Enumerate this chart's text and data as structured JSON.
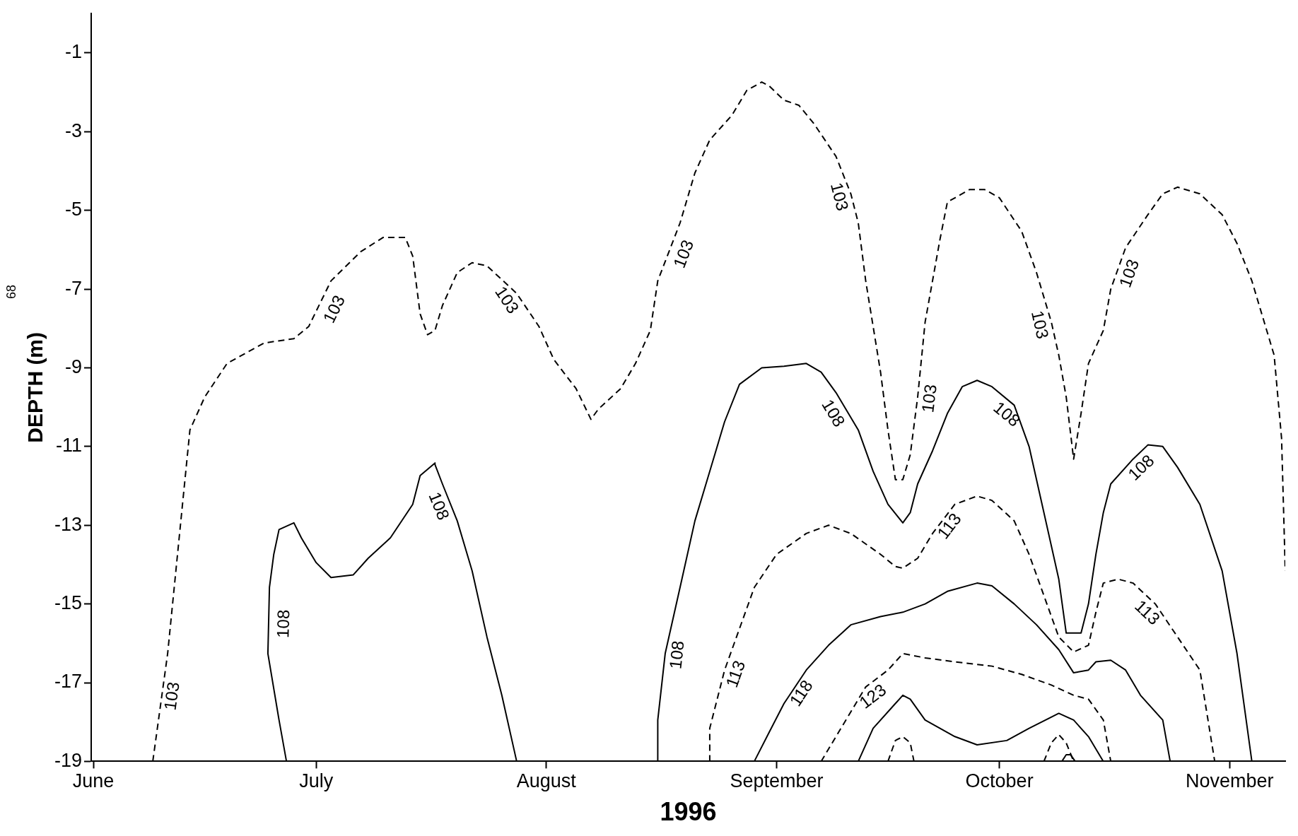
{
  "chart_data": {
    "type": "line",
    "xlabel": "1996",
    "ylabel": "DEPTH (m)",
    "xlim": [
      "1996-05-31T17:00",
      "1996-11-08T12:00"
    ],
    "xticks": [
      {
        "value": "1996-06-01",
        "label": "June"
      },
      {
        "value": "1996-07-01",
        "label": "July"
      },
      {
        "value": "1996-08-01",
        "label": "August"
      },
      {
        "value": "1996-09-01",
        "label": "September"
      },
      {
        "value": "1996-10-01",
        "label": "October"
      },
      {
        "value": "1996-11-01",
        "label": "November"
      }
    ],
    "ylim": [
      -19,
      0
    ],
    "yticks": [
      -1,
      -3,
      -5,
      -7,
      -9,
      -11,
      -13,
      -15,
      -17,
      -19
    ],
    "series": [
      {
        "color": "#000000",
        "line_style": "dashed",
        "x": [
          "1996-06-09",
          "1996-06-10",
          "1996-06-11",
          "1996-06-13",
          "1996-06-14",
          "1996-06-16",
          "1996-06-19",
          "1996-06-24",
          "1996-06-28",
          "1996-06-30",
          "1996-07-03",
          "1996-07-07",
          "1996-07-10",
          "1996-07-13",
          "1996-07-14",
          "1996-07-15",
          "1996-07-16",
          "1996-07-17",
          "1996-07-18",
          "1996-07-20",
          "1996-07-22",
          "1996-07-24",
          "1996-07-28",
          "1996-07-31",
          "1996-08-02",
          "1996-08-05",
          "1996-08-07",
          "1996-08-08",
          "1996-08-11",
          "1996-08-13",
          "1996-08-15",
          "1996-08-16",
          "1996-08-19",
          "1996-08-21",
          "1996-08-23",
          "1996-08-26",
          "1996-08-28",
          "1996-08-30",
          "1996-08-31",
          "1996-09-02",
          "1996-09-04",
          "1996-09-06",
          "1996-09-09",
          "1996-09-11",
          "1996-09-12",
          "1996-09-13",
          "1996-09-15",
          "1996-09-16",
          "1996-09-17",
          "1996-09-18",
          "1996-09-19",
          "1996-09-20",
          "1996-09-21",
          "1996-09-23",
          "1996-09-24",
          "1996-09-27",
          "1996-09-29",
          "1996-10-01",
          "1996-10-04",
          "1996-10-06",
          "1996-10-08",
          "1996-10-09",
          "1996-10-10",
          "1996-10-11",
          "1996-10-12",
          "1996-10-13",
          "1996-10-15",
          "1996-10-16",
          "1996-10-18",
          "1996-10-21",
          "1996-10-23",
          "1996-10-25",
          "1996-10-28",
          "1996-10-31",
          "1996-11-02",
          "1996-11-04",
          "1996-11-07",
          "1996-11-08",
          "1996-11-08T12:00"
        ],
        "values": [
          -19.0,
          -17.63,
          -16.26,
          -12.47,
          -10.58,
          -9.74,
          -8.89,
          -8.37,
          -8.26,
          -7.95,
          -6.79,
          -6.05,
          -5.69,
          -5.69,
          -6.16,
          -7.63,
          -8.16,
          -8.05,
          -7.42,
          -6.58,
          -6.33,
          -6.41,
          -7.11,
          -7.95,
          -8.79,
          -9.53,
          -10.31,
          -10.05,
          -9.53,
          -8.89,
          -8.05,
          -6.79,
          -5.32,
          -4.05,
          -3.21,
          -2.58,
          -1.95,
          -1.74,
          -1.84,
          -2.2,
          -2.33,
          -2.79,
          -3.63,
          -4.58,
          -5.32,
          -6.79,
          -9.11,
          -10.58,
          -11.84,
          -11.84,
          -11.21,
          -9.74,
          -7.84,
          -5.74,
          -4.79,
          -4.47,
          -4.47,
          -4.68,
          -5.53,
          -6.58,
          -7.84,
          -8.68,
          -9.74,
          -11.32,
          -10.16,
          -8.89,
          -8.05,
          -7.0,
          -5.95,
          -5.11,
          -4.58,
          -4.41,
          -4.58,
          -5.11,
          -5.84,
          -6.79,
          -8.68,
          -10.79,
          -14.16
        ]
      },
      {
        "color": "#000000",
        "line_style": "solid",
        "x": [
          "1996-06-27",
          "1996-06-26",
          "1996-06-24T12:00",
          "1996-06-24T17:00",
          "1996-06-25T07:00",
          "1996-06-26",
          "1996-06-28",
          "1996-06-29",
          "1996-07-01",
          "1996-07-03",
          "1996-07-06",
          "1996-07-08",
          "1996-07-11",
          "1996-07-14",
          "1996-07-15",
          "1996-07-17",
          "1996-07-17",
          "1996-07-18",
          "1996-07-20",
          "1996-07-22",
          "1996-07-24",
          "1996-07-26",
          "1996-07-28"
        ],
        "values": [
          -19,
          -17.95,
          -16.26,
          -14.58,
          -13.74,
          -13.11,
          -12.94,
          -13.32,
          -13.95,
          -14.33,
          -14.26,
          -13.84,
          -13.32,
          -12.47,
          -11.74,
          -11.42,
          -11.46,
          -11.95,
          -12.89,
          -14.16,
          -15.84,
          -17.32,
          -19
        ]
      },
      {
        "color": "#000000",
        "line_style": "solid",
        "x": [
          "1996-08-16",
          "1996-08-16",
          "1996-08-17",
          "1996-08-19",
          "1996-08-21",
          "1996-08-23",
          "1996-08-25",
          "1996-08-27",
          "1996-08-30",
          "1996-09-02",
          "1996-09-05",
          "1996-09-07",
          "1996-09-09",
          "1996-09-12",
          "1996-09-14",
          "1996-09-16",
          "1996-09-18",
          "1996-09-19",
          "1996-09-20",
          "1996-09-22",
          "1996-09-24",
          "1996-09-26",
          "1996-09-28",
          "1996-09-30",
          "1996-10-03",
          "1996-10-05",
          "1996-10-07",
          "1996-10-09",
          "1996-10-10",
          "1996-10-12",
          "1996-10-13",
          "1996-10-14",
          "1996-10-15",
          "1996-10-16",
          "1996-10-19",
          "1996-10-21",
          "1996-10-23",
          "1996-10-25",
          "1996-10-28",
          "1996-10-31",
          "1996-11-02",
          "1996-11-04"
        ],
        "values": [
          -19,
          -17.95,
          -16.26,
          -14.58,
          -12.89,
          -11.63,
          -10.37,
          -9.42,
          -9.0,
          -8.96,
          -8.89,
          -9.11,
          -9.63,
          -10.58,
          -11.63,
          -12.47,
          -12.94,
          -12.68,
          -11.95,
          -11.11,
          -10.16,
          -9.48,
          -9.32,
          -9.48,
          -9.95,
          -11.0,
          -12.68,
          -14.37,
          -15.74,
          -15.74,
          -15.0,
          -13.74,
          -12.68,
          -11.95,
          -11.32,
          -10.96,
          -11.0,
          -11.53,
          -12.47,
          -14.16,
          -16.26,
          -19
        ]
      },
      {
        "color": "#000000",
        "line_style": "dashed",
        "x": [
          "1996-08-23",
          "1996-08-23",
          "1996-08-25",
          "1996-08-27",
          "1996-08-29",
          "1996-09-01",
          "1996-09-05",
          "1996-09-08",
          "1996-09-11",
          "1996-09-15",
          "1996-09-17",
          "1996-09-18",
          "1996-09-20",
          "1996-09-22",
          "1996-09-25",
          "1996-09-28",
          "1996-09-30",
          "1996-10-03",
          "1996-10-05",
          "1996-10-07",
          "1996-10-09",
          "1996-10-11",
          "1996-10-13",
          "1996-10-14",
          "1996-10-15",
          "1996-10-17",
          "1996-10-19",
          "1996-10-22",
          "1996-10-25",
          "1996-10-28",
          "1996-10-30"
        ],
        "values": [
          -19,
          -18.16,
          -16.68,
          -15.63,
          -14.58,
          -13.74,
          -13.21,
          -13.0,
          -13.21,
          -13.74,
          -14.05,
          -14.09,
          -13.84,
          -13.21,
          -12.47,
          -12.26,
          -12.37,
          -12.89,
          -13.74,
          -14.79,
          -15.84,
          -16.22,
          -16.05,
          -15.21,
          -14.47,
          -14.37,
          -14.47,
          -15.0,
          -15.84,
          -16.68,
          -19
        ]
      },
      {
        "color": "#000000",
        "line_style": "solid",
        "x": [
          "1996-08-29",
          "1996-08-31",
          "1996-09-02",
          "1996-09-05",
          "1996-09-08",
          "1996-09-11",
          "1996-09-15",
          "1996-09-18",
          "1996-09-21",
          "1996-09-24",
          "1996-09-28",
          "1996-09-30",
          "1996-10-03",
          "1996-10-06",
          "1996-10-09",
          "1996-10-11",
          "1996-10-13",
          "1996-10-14",
          "1996-10-16",
          "1996-10-18",
          "1996-10-20",
          "1996-10-23",
          "1996-10-24"
        ],
        "values": [
          -19,
          -18.26,
          -17.53,
          -16.68,
          -16.05,
          -15.53,
          -15.32,
          -15.21,
          -15.0,
          -14.68,
          -14.47,
          -14.54,
          -15.0,
          -15.53,
          -16.16,
          -16.75,
          -16.68,
          -16.47,
          -16.43,
          -16.68,
          -17.32,
          -17.95,
          -19
        ]
      },
      {
        "color": "#000000",
        "line_style": "dashed",
        "x": [
          "1996-09-07",
          "1996-09-09",
          "1996-09-11",
          "1996-09-13",
          "1996-09-16",
          "1996-09-18",
          "1996-09-21",
          "1996-09-25",
          "1996-09-30",
          "1996-10-04",
          "1996-10-08",
          "1996-10-11",
          "1996-10-13",
          "1996-10-15",
          "1996-10-16"
        ],
        "values": [
          -19,
          -18.37,
          -17.74,
          -17.11,
          -16.68,
          -16.26,
          -16.37,
          -16.47,
          -16.58,
          -16.79,
          -17.06,
          -17.32,
          -17.42,
          -17.95,
          -19
        ]
      },
      {
        "color": "#000000",
        "line_style": "solid",
        "x": [
          "1996-09-12",
          "1996-09-14",
          "1996-09-17",
          "1996-09-18",
          "1996-09-19",
          "1996-09-21",
          "1996-09-25",
          "1996-09-28",
          "1996-10-02",
          "1996-10-05",
          "1996-10-09",
          "1996-10-11",
          "1996-10-13",
          "1996-10-15"
        ],
        "values": [
          -19,
          -18.16,
          -17.53,
          -17.32,
          -17.42,
          -17.95,
          -18.37,
          -18.58,
          -18.47,
          -18.16,
          -17.78,
          -17.95,
          -18.37,
          -19
        ]
      },
      {
        "color": "#000000",
        "line_style": "dashed",
        "x": [
          "1996-09-16",
          "1996-09-17",
          "1996-09-18",
          "1996-09-19",
          "1996-09-19T12:00"
        ],
        "values": [
          -19,
          -18.47,
          -18.37,
          -18.53,
          -19
        ]
      },
      {
        "color": "#000000",
        "line_style": "dashed",
        "x": [
          "1996-10-07",
          "1996-10-08",
          "1996-10-09",
          "1996-10-10",
          "1996-10-11"
        ],
        "values": [
          -19,
          -18.53,
          -18.32,
          -18.53,
          -19
        ]
      },
      {
        "color": "#000000",
        "line_style": "solid",
        "x": [
          "1996-10-09T10:00",
          "1996-10-10",
          "1996-10-10T14:00",
          "1996-10-11T05:00"
        ],
        "values": [
          -19,
          -18.83,
          -18.83,
          -19
        ]
      }
    ],
    "annotations": [
      {
        "text": "103",
        "x": "1996-06-10",
        "y": -17.3
      },
      {
        "text": "103",
        "x": "1996-07-02",
        "y": -7.38
      },
      {
        "text": "103",
        "x": "1996-07-28",
        "y": -7.11
      },
      {
        "text": "103",
        "x": "1996-08-18",
        "y": -6.0
      },
      {
        "text": "103",
        "x": "1996-09-11",
        "y": -4.58
      },
      {
        "text": "103",
        "x": "1996-09-20",
        "y": -9.74
      },
      {
        "text": "103",
        "x": "1996-10-08",
        "y": -7.84
      },
      {
        "text": "103",
        "x": "1996-10-17",
        "y": -6.5
      },
      {
        "text": "108",
        "x": "1996-06-25",
        "y": -15.5
      },
      {
        "text": "108",
        "x": "1996-07-19",
        "y": -12.4
      },
      {
        "text": "108",
        "x": "1996-08-17",
        "y": -16.26
      },
      {
        "text": "108",
        "x": "1996-09-10",
        "y": -10.0
      },
      {
        "text": "108",
        "x": "1996-10-03",
        "y": -9.95
      },
      {
        "text": "108",
        "x": "1996-10-19",
        "y": -11.32
      },
      {
        "text": "113",
        "x": "1996-08-25",
        "y": -16.68
      },
      {
        "text": "113",
        "x": "1996-09-23",
        "y": -12.84
      },
      {
        "text": "113",
        "x": "1996-10-22",
        "y": -15.0
      },
      {
        "text": "118",
        "x": "1996-09-03",
        "y": -17.1
      },
      {
        "text": "123",
        "x": "1996-09-13",
        "y": -17.11
      },
      "68"
    ]
  }
}
